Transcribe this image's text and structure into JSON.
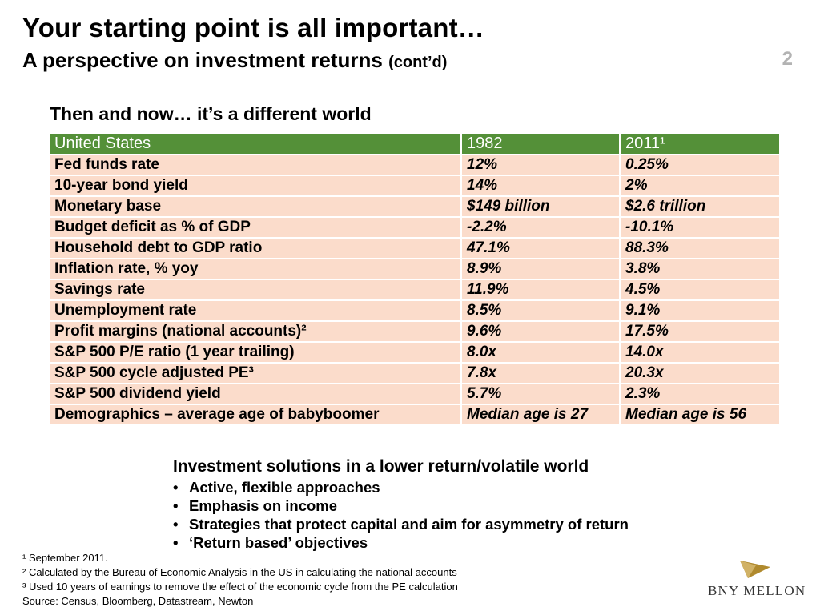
{
  "header": {
    "title_line1": "Your starting point is all important…",
    "title_line2_main": "A perspective on investment returns",
    "title_line2_small": "(cont’d)",
    "page_number": "2"
  },
  "subtitle": "Then and now… it’s a different world",
  "table": {
    "headers": [
      "United States",
      "1982",
      "2011¹"
    ],
    "rows": [
      [
        "Fed funds rate",
        "12%",
        "0.25%"
      ],
      [
        "10-year bond yield",
        "14%",
        "2%"
      ],
      [
        "Monetary base",
        "$149 billion",
        "$2.6 trillion"
      ],
      [
        "Budget deficit as % of GDP",
        "-2.2%",
        "-10.1%"
      ],
      [
        "Household debt to GDP ratio",
        "47.1%",
        "88.3%"
      ],
      [
        "Inflation rate, % yoy",
        "8.9%",
        "3.8%"
      ],
      [
        "Savings rate",
        "11.9%",
        "4.5%"
      ],
      [
        "Unemployment rate",
        "8.5%",
        "9.1%"
      ],
      [
        "Profit margins (national accounts)²",
        "9.6%",
        "17.5%"
      ],
      [
        "S&P 500 P/E ratio (1 year trailing)",
        "8.0x",
        "14.0x"
      ],
      [
        "S&P 500 cycle adjusted PE³",
        "7.8x",
        "20.3x"
      ],
      [
        "S&P 500 dividend yield",
        "5.7%",
        "2.3%"
      ],
      [
        "Demographics – average age of babyboomer",
        "Median age is 27",
        "Median age is 56"
      ]
    ]
  },
  "solutions": {
    "heading": "Investment solutions in a lower return/volatile world",
    "bullet_symbol": "•",
    "items": [
      "Active, flexible approaches",
      "Emphasis on income",
      "Strategies that protect capital and aim for asymmetry of return",
      "‘Return based’ objectives"
    ]
  },
  "footnotes": [
    "¹ September 2011.",
    "² Calculated by the Bureau of Economic Analysis in the US in calculating the national accounts",
    "³ Used 10 years of earnings to remove the effect of the economic cycle from the PE calculation",
    "Source:  Census, Bloomberg, Datastream, Newton"
  ],
  "logo": {
    "text": "BNY MELLON",
    "icon": "bny-mellon-pyramid-logo-icon",
    "colors": {
      "gold": "#b08a2e",
      "dark": "#4a4a4a"
    }
  },
  "colors": {
    "table_header_bg": "#549038",
    "table_row_bg": "#fbdccb",
    "page_number": "#b3b3b3"
  }
}
